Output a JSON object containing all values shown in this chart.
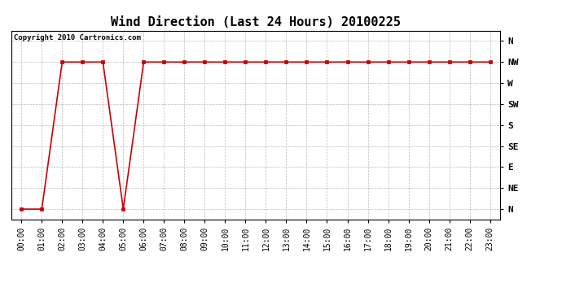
{
  "title": "Wind Direction (Last 24 Hours) 20100225",
  "copyright_text": "Copyright 2010 Cartronics.com",
  "background_color": "#ffffff",
  "line_color": "#cc0000",
  "marker": "s",
  "marker_size": 3,
  "grid_color": "#bbbbbb",
  "ytick_labels": [
    "N",
    "NE",
    "E",
    "SE",
    "S",
    "SW",
    "W",
    "NW",
    "N"
  ],
  "ytick_values": [
    0,
    1,
    2,
    3,
    4,
    5,
    6,
    7,
    8
  ],
  "x_hours": [
    0,
    1,
    2,
    3,
    4,
    5,
    6,
    7,
    8,
    9,
    10,
    11,
    12,
    13,
    14,
    15,
    16,
    17,
    18,
    19,
    20,
    21,
    22,
    23
  ],
  "y_values": [
    0,
    0,
    7,
    7,
    7,
    0,
    7,
    7,
    7,
    7,
    7,
    7,
    7,
    7,
    7,
    7,
    7,
    7,
    7,
    7,
    7,
    7,
    7,
    7
  ],
  "xtick_labels": [
    "00:00",
    "01:00",
    "02:00",
    "03:00",
    "04:00",
    "05:00",
    "06:00",
    "07:00",
    "08:00",
    "09:00",
    "10:00",
    "11:00",
    "12:00",
    "13:00",
    "14:00",
    "15:00",
    "16:00",
    "17:00",
    "18:00",
    "19:00",
    "20:00",
    "21:00",
    "22:00",
    "23:00"
  ],
  "ylim": [
    -0.5,
    8.5
  ],
  "title_fontsize": 11,
  "axis_fontsize": 7,
  "ytick_fontsize": 8,
  "copyright_fontsize": 6.5
}
